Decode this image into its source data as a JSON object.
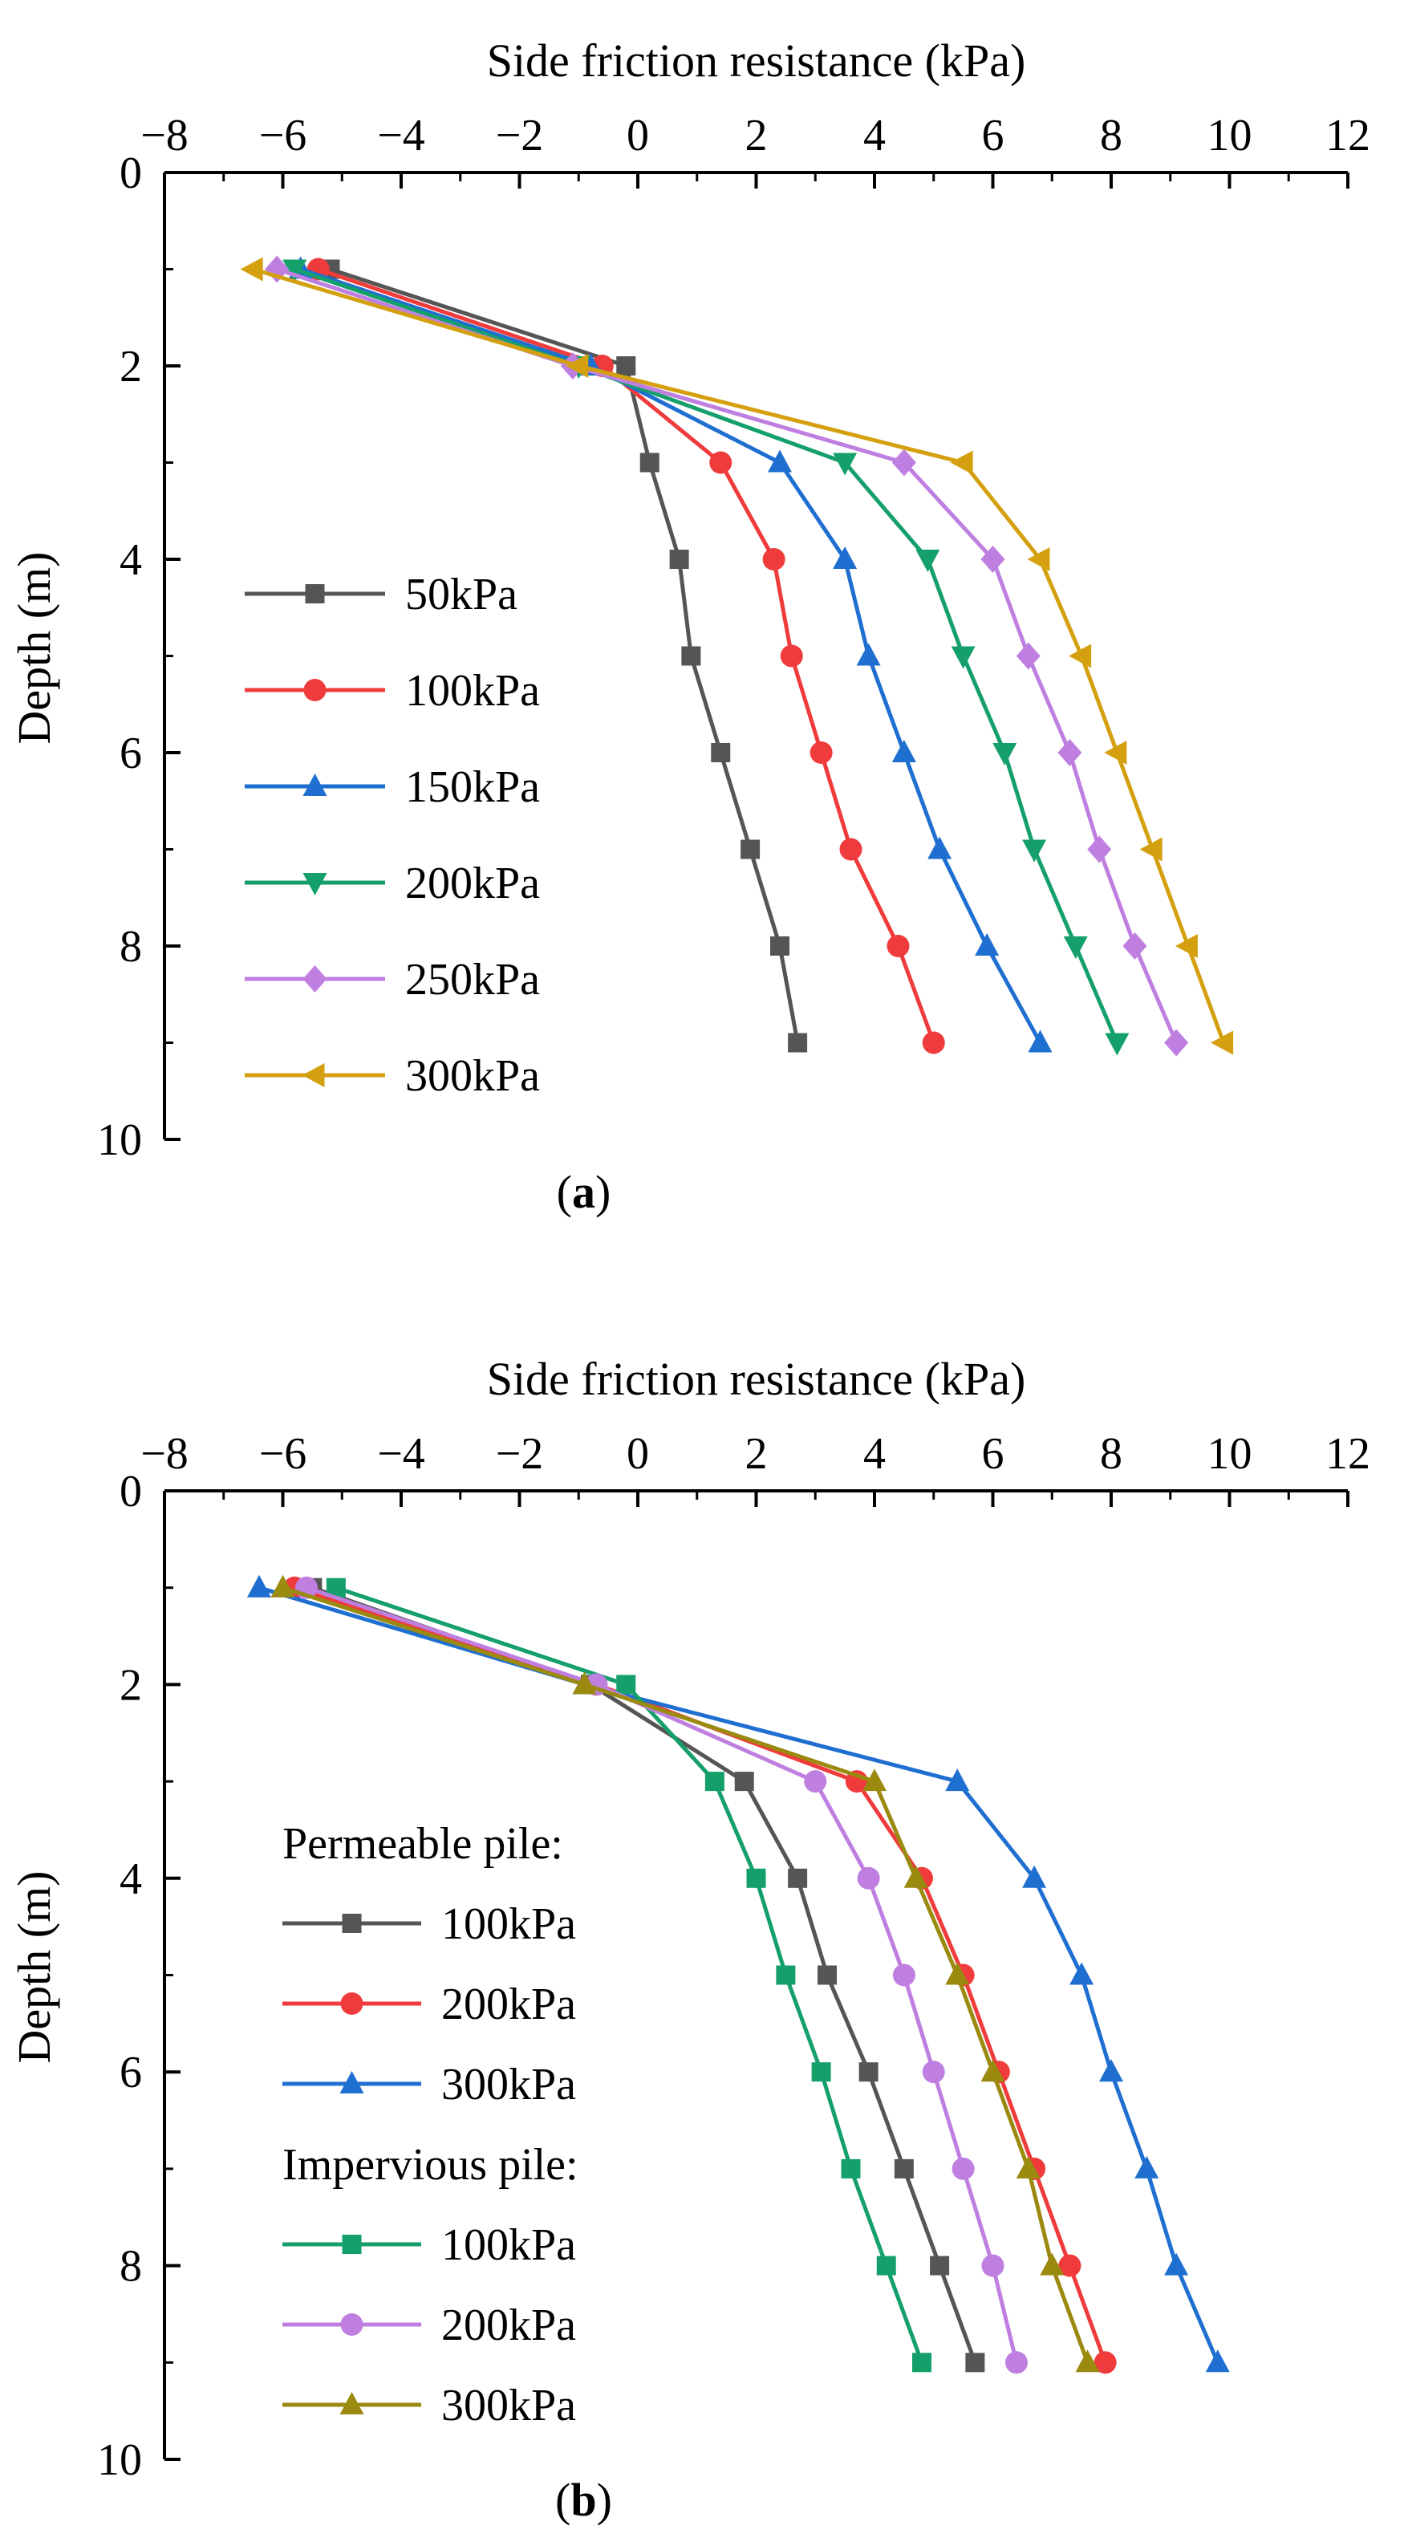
{
  "chart_data": [
    {
      "panel": "a",
      "caption_open": "(",
      "caption_letter": "a",
      "caption_close": ")",
      "type": "line",
      "title": "",
      "xlabel": "Side friction resistance (kPa)",
      "ylabel": "Depth (m)",
      "xlim": [
        -8,
        12
      ],
      "ylim": [
        0,
        10
      ],
      "x_ticks": [
        "−8",
        "−6",
        "−4",
        "−2",
        "0",
        "2",
        "4",
        "6",
        "8",
        "10",
        "12"
      ],
      "y_ticks": [
        "0",
        "2",
        "4",
        "6",
        "8",
        "10"
      ],
      "legend_position": "center-left",
      "series": [
        {
          "name": "50kPa",
          "color": "#555555",
          "marker": "square",
          "x": [
            -5.2,
            -0.2,
            0.2,
            0.7,
            0.9,
            1.4,
            1.9,
            2.4,
            2.7
          ],
          "y": [
            1,
            2,
            3,
            4,
            5,
            6,
            7,
            8,
            9
          ]
        },
        {
          "name": "100kPa",
          "color": "#ef3b3b",
          "marker": "circle",
          "x": [
            -5.4,
            -0.6,
            1.4,
            2.3,
            2.6,
            3.1,
            3.6,
            4.4,
            5.0
          ],
          "y": [
            1,
            2,
            3,
            4,
            5,
            6,
            7,
            8,
            9
          ]
        },
        {
          "name": "150kPa",
          "color": "#1f6fd1",
          "marker": "triangle-up",
          "x": [
            -5.7,
            -0.8,
            2.4,
            3.5,
            3.9,
            4.5,
            5.1,
            5.9,
            6.8
          ],
          "y": [
            1,
            2,
            3,
            4,
            5,
            6,
            7,
            8,
            9
          ]
        },
        {
          "name": "200kPa",
          "color": "#15a06b",
          "marker": "triangle-down",
          "x": [
            -5.8,
            -1.0,
            3.5,
            4.9,
            5.5,
            6.2,
            6.7,
            7.4,
            8.1
          ],
          "y": [
            1,
            2,
            3,
            4,
            5,
            6,
            7,
            8,
            9
          ]
        },
        {
          "name": "250kPa",
          "color": "#bf7fe0",
          "marker": "diamond",
          "x": [
            -6.1,
            -1.1,
            4.5,
            6.0,
            6.6,
            7.3,
            7.8,
            8.4,
            9.1
          ],
          "y": [
            1,
            2,
            3,
            4,
            5,
            6,
            7,
            8,
            9
          ]
        },
        {
          "name": "300kPa",
          "color": "#d4a00f",
          "marker": "triangle-left",
          "x": [
            -6.5,
            -1.0,
            5.5,
            6.8,
            7.5,
            8.1,
            8.7,
            9.3,
            9.9
          ],
          "y": [
            1,
            2,
            3,
            4,
            5,
            6,
            7,
            8,
            9
          ]
        }
      ]
    },
    {
      "panel": "b",
      "caption_open": "(",
      "caption_letter": "b",
      "caption_close": ")",
      "type": "line",
      "title": "",
      "xlabel": "Side friction resistance (kPa)",
      "ylabel": "Depth (m)",
      "xlim": [
        -8,
        12
      ],
      "ylim": [
        0,
        10
      ],
      "x_ticks": [
        "−8",
        "−6",
        "−4",
        "−2",
        "0",
        "2",
        "4",
        "6",
        "8",
        "10",
        "12"
      ],
      "y_ticks": [
        "0",
        "2",
        "4",
        "6",
        "8",
        "10"
      ],
      "legend_position": "bottom-left",
      "legend_groups": [
        {
          "heading": "Permeable pile:",
          "series": [
            0,
            1,
            2
          ]
        },
        {
          "heading": "Impervious pile:",
          "series": [
            3,
            4,
            5
          ]
        }
      ],
      "series": [
        {
          "name": "100kPa",
          "group": "Permeable pile",
          "color": "#555555",
          "marker": "square",
          "x": [
            -5.5,
            -0.8,
            1.8,
            2.7,
            3.2,
            3.9,
            4.5,
            5.1,
            5.7
          ],
          "y": [
            1,
            2,
            3,
            4,
            5,
            6,
            7,
            8,
            9
          ]
        },
        {
          "name": "200kPa",
          "group": "Permeable pile",
          "color": "#ef3b3b",
          "marker": "circle",
          "x": [
            -5.8,
            -0.7,
            3.7,
            4.8,
            5.5,
            6.1,
            6.7,
            7.3,
            7.9
          ],
          "y": [
            1,
            2,
            3,
            4,
            5,
            6,
            7,
            8,
            9
          ]
        },
        {
          "name": "300kPa",
          "group": "Permeable pile",
          "color": "#1f6fd1",
          "marker": "triangle-up",
          "x": [
            -6.4,
            -0.9,
            5.4,
            6.7,
            7.5,
            8.0,
            8.6,
            9.1,
            9.8
          ],
          "y": [
            1,
            2,
            3,
            4,
            5,
            6,
            7,
            8,
            9
          ]
        },
        {
          "name": "100kPa",
          "group": "Impervious pile",
          "color": "#15a06b",
          "marker": "square",
          "x": [
            -5.1,
            -0.2,
            1.3,
            2.0,
            2.5,
            3.1,
            3.6,
            4.2,
            4.8
          ],
          "y": [
            1,
            2,
            3,
            4,
            5,
            6,
            7,
            8,
            9
          ]
        },
        {
          "name": "200kPa",
          "group": "Impervious pile",
          "color": "#bf7fe0",
          "marker": "circle",
          "x": [
            -5.6,
            -0.7,
            3.0,
            3.9,
            4.5,
            5.0,
            5.5,
            6.0,
            6.4
          ],
          "y": [
            1,
            2,
            3,
            4,
            5,
            6,
            7,
            8,
            9
          ]
        },
        {
          "name": "300kPa",
          "group": "Impervious pile",
          "color": "#9a8a10",
          "marker": "triangle-up",
          "x": [
            -6.0,
            -0.9,
            4.0,
            4.7,
            5.4,
            6.0,
            6.6,
            7.0,
            7.6
          ],
          "y": [
            1,
            2,
            3,
            4,
            5,
            6,
            7,
            8,
            9
          ]
        }
      ]
    }
  ]
}
